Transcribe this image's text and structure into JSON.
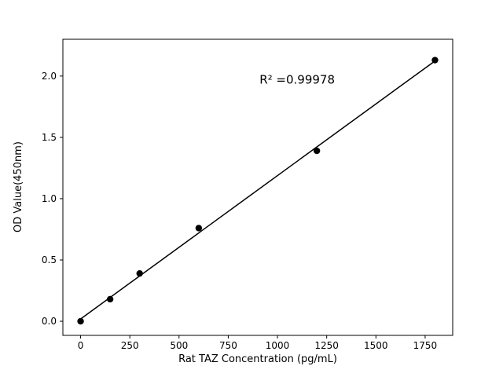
{
  "chart_data": {
    "type": "scatter",
    "title": "",
    "xlabel": "Rat TAZ Concentration (pg/mL)",
    "ylabel": "OD Value(450nm)",
    "annotation": {
      "text": "R² =0.99978",
      "x": 1100,
      "y": 1.97
    },
    "x": [
      0,
      150,
      300,
      600,
      1200,
      1800
    ],
    "y": [
      0.0,
      0.18,
      0.39,
      0.76,
      1.39,
      2.13
    ],
    "fit": {
      "slope": 0.001169,
      "intercept": 0.019,
      "x_range": [
        0,
        1800
      ]
    },
    "xlim": [
      -90,
      1890
    ],
    "ylim": [
      -0.115,
      2.3
    ],
    "xticks": [
      0,
      250,
      500,
      750,
      1000,
      1250,
      1500,
      1750
    ],
    "yticks": [
      0.0,
      0.5,
      1.0,
      1.5,
      2.0
    ],
    "grid": false,
    "legend": null,
    "marker_color": "#000000",
    "line_color": "#000000",
    "spine_color": "#000000",
    "background_color": "#ffffff"
  }
}
